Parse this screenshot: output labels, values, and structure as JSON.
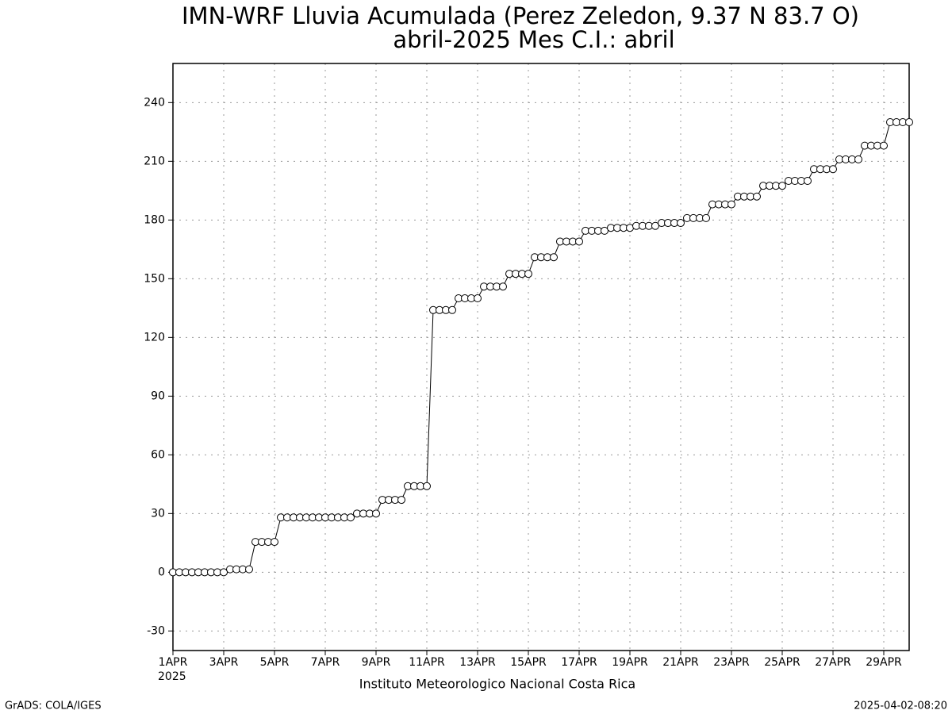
{
  "chart_data": {
    "type": "line",
    "title": "IMN-WRF  Lluvia Acumulada (Perez Zeledon, 9.37  N 83.7  O)",
    "subtitle": "abril-2025 Mes C.I.: abril",
    "x_label": "Instituto Meteorologico Nacional Costa Rica",
    "year_label": "2025",
    "left_footer": "GrADS: COLA/IGES",
    "right_footer": "2025-04-02-08:20",
    "color": "#000000",
    "marker_fill": "#ffffff",
    "grid": true,
    "xlim": [
      0,
      29
    ],
    "ylim": [
      -40,
      260
    ],
    "yticks": [
      -30,
      0,
      30,
      60,
      90,
      120,
      150,
      180,
      210,
      240
    ],
    "xticks": [
      {
        "value": 0,
        "label": "1APR"
      },
      {
        "value": 2,
        "label": "3APR"
      },
      {
        "value": 4,
        "label": "5APR"
      },
      {
        "value": 6,
        "label": "7APR"
      },
      {
        "value": 8,
        "label": "9APR"
      },
      {
        "value": 10,
        "label": "11APR"
      },
      {
        "value": 12,
        "label": "13APR"
      },
      {
        "value": 14,
        "label": "15APR"
      },
      {
        "value": 16,
        "label": "17APR"
      },
      {
        "value": 18,
        "label": "19APR"
      },
      {
        "value": 20,
        "label": "21APR"
      },
      {
        "value": 22,
        "label": "23APR"
      },
      {
        "value": 24,
        "label": "25APR"
      },
      {
        "value": 26,
        "label": "27APR"
      },
      {
        "value": 28,
        "label": "29APR"
      }
    ],
    "x": [
      0,
      0.25,
      0.5,
      0.75,
      1,
      1.25,
      1.5,
      1.75,
      2,
      2.25,
      2.5,
      2.75,
      3,
      3.25,
      3.5,
      3.75,
      4,
      4.25,
      4.5,
      4.75,
      5,
      5.25,
      5.5,
      5.75,
      6,
      6.25,
      6.5,
      6.75,
      7,
      7.25,
      7.5,
      7.75,
      8,
      8.25,
      8.5,
      8.75,
      9,
      9.25,
      9.5,
      9.75,
      10,
      10.25,
      10.5,
      10.75,
      11,
      11.25,
      11.5,
      11.75,
      12,
      12.25,
      12.5,
      12.75,
      13,
      13.25,
      13.5,
      13.75,
      14,
      14.25,
      14.5,
      14.75,
      15,
      15.25,
      15.5,
      15.75,
      16,
      16.25,
      16.5,
      16.75,
      17,
      17.25,
      17.5,
      17.75,
      18,
      18.25,
      18.5,
      18.75,
      19,
      19.25,
      19.5,
      19.75,
      20,
      20.25,
      20.5,
      20.75,
      21,
      21.25,
      21.5,
      21.75,
      22,
      22.25,
      22.5,
      22.75,
      23,
      23.25,
      23.5,
      23.75,
      24,
      24.25,
      24.5,
      24.75,
      25,
      25.25,
      25.5,
      25.75,
      26,
      26.25,
      26.5,
      26.75,
      27,
      27.25,
      27.5,
      27.75,
      28,
      28.25,
      28.5,
      28.75,
      29
    ],
    "values": [
      0,
      0,
      0,
      0,
      0,
      0,
      0,
      0,
      0,
      1.5,
      1.5,
      1.5,
      1.5,
      15.5,
      15.5,
      15.5,
      15.5,
      28,
      28,
      28,
      28,
      28,
      28,
      28,
      28,
      28,
      28,
      28,
      28,
      30,
      30,
      30,
      30,
      37,
      37,
      37,
      37,
      44,
      44,
      44,
      44,
      134,
      134,
      134,
      134,
      140,
      140,
      140,
      140,
      146,
      146,
      146,
      146,
      152.5,
      152.5,
      152.5,
      152.5,
      161,
      161,
      161,
      161,
      169,
      169,
      169,
      169,
      174.5,
      174.5,
      174.5,
      174.5,
      176,
      176,
      176,
      176,
      177,
      177,
      177,
      177,
      178.5,
      178.5,
      178.5,
      178.5,
      181,
      181,
      181,
      181,
      188,
      188,
      188,
      188,
      192,
      192,
      192,
      192,
      197.5,
      197.5,
      197.5,
      197.5,
      200,
      200,
      200,
      200,
      206,
      206,
      206,
      206,
      211,
      211,
      211,
      211,
      218,
      218,
      218,
      218,
      230,
      230,
      230,
      230
    ]
  }
}
